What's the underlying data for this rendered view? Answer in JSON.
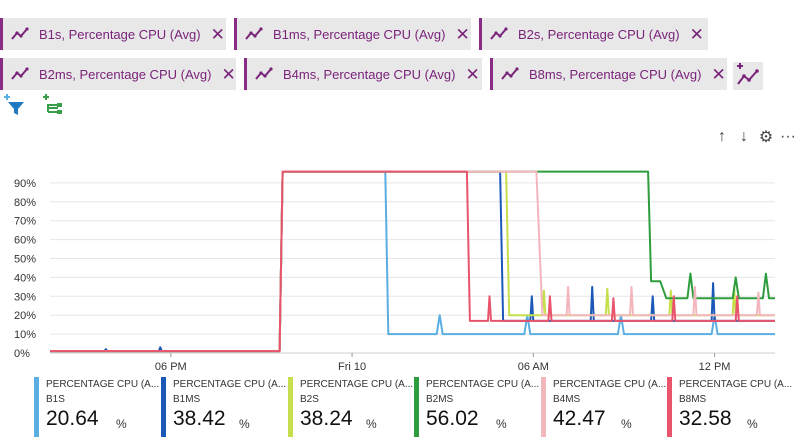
{
  "metric_chips": [
    {
      "label": "B1s, Percentage CPU (Avg)"
    },
    {
      "label": "B1ms, Percentage CPU (Avg)"
    },
    {
      "label": "B2s, Percentage CPU (Avg)"
    },
    {
      "label": "B2ms, Percentage CPU (Avg)"
    },
    {
      "label": "B4ms, Percentage CPU (Avg)"
    },
    {
      "label": "B8ms, Percentage CPU (Avg)"
    }
  ],
  "chip_close_glyph": "✕",
  "toolbar": {
    "up": "↑",
    "down": "↓",
    "gear": "⚙",
    "more": "···"
  },
  "icons": {
    "chip": "line-chart-icon",
    "add_metric": "add-metric-icon",
    "add_filter": "add-filter-icon",
    "apply_splitting": "apply-splitting-icon"
  },
  "colors": {
    "accent": "#8a2b88"
  },
  "legend": [
    {
      "metric": "PERCENTAGE CPU (A...",
      "name": "B1S",
      "value": "20.64",
      "unit": "%",
      "color": "#5aaee2"
    },
    {
      "metric": "PERCENTAGE CPU (A...",
      "name": "B1MS",
      "value": "38.42",
      "unit": "%",
      "color": "#1b58b8"
    },
    {
      "metric": "PERCENTAGE CPU (A...",
      "name": "B2S",
      "value": "38.24",
      "unit": "%",
      "color": "#c5e04c"
    },
    {
      "metric": "PERCENTAGE CPU (A...",
      "name": "B2MS",
      "value": "56.02",
      "unit": "%",
      "color": "#2e9d3e"
    },
    {
      "metric": "PERCENTAGE CPU (A...",
      "name": "B4MS",
      "value": "42.47",
      "unit": "%",
      "color": "#f4b6bd"
    },
    {
      "metric": "PERCENTAGE CPU (A...",
      "name": "B8MS",
      "value": "32.58",
      "unit": "%",
      "color": "#e8546b"
    }
  ],
  "chart_data": {
    "type": "line",
    "title": "",
    "xlabel": "",
    "ylabel": "",
    "x_unit": "hours since 14:00",
    "xlim": [
      0,
      24
    ],
    "ylim": [
      0,
      100
    ],
    "x_tick_labels": [
      {
        "x": 4,
        "label": "06 PM"
      },
      {
        "x": 10,
        "label": "Fri 10"
      },
      {
        "x": 16,
        "label": "06 AM"
      },
      {
        "x": 22,
        "label": "12 PM"
      }
    ],
    "y_ticks": [
      0,
      10,
      20,
      30,
      40,
      50,
      60,
      70,
      80,
      90
    ],
    "y_tick_labels": [
      "0%",
      "10%",
      "20%",
      "30%",
      "40%",
      "50%",
      "60%",
      "70%",
      "80%",
      "90%"
    ],
    "grid": true,
    "series": [
      {
        "name": "B1S",
        "color": "#5aaee2",
        "points": [
          [
            0,
            1
          ],
          [
            7.6,
            1
          ],
          [
            7.7,
            96
          ],
          [
            11.1,
            96
          ],
          [
            11.2,
            10
          ],
          [
            12.8,
            10
          ],
          [
            12.9,
            20
          ],
          [
            13.0,
            10
          ],
          [
            15.7,
            10
          ],
          [
            15.8,
            20
          ],
          [
            15.9,
            10
          ],
          [
            18.8,
            10
          ],
          [
            18.9,
            20
          ],
          [
            19.0,
            10
          ],
          [
            21.9,
            10
          ],
          [
            22.0,
            20
          ],
          [
            22.1,
            10
          ],
          [
            24,
            10
          ]
        ]
      },
      {
        "name": "B1MS",
        "color": "#1b58b8",
        "points": [
          [
            0,
            1
          ],
          [
            1.8,
            1
          ],
          [
            1.85,
            2
          ],
          [
            1.9,
            1
          ],
          [
            3.6,
            1
          ],
          [
            3.65,
            3
          ],
          [
            3.7,
            1
          ],
          [
            7.6,
            1
          ],
          [
            7.7,
            96
          ],
          [
            14.9,
            96
          ],
          [
            15.0,
            17
          ],
          [
            15.9,
            17
          ],
          [
            15.95,
            30
          ],
          [
            16.0,
            17
          ],
          [
            17.9,
            17
          ],
          [
            17.95,
            35
          ],
          [
            18.0,
            17
          ],
          [
            19.9,
            17
          ],
          [
            19.95,
            30
          ],
          [
            20.0,
            17
          ],
          [
            21.9,
            17
          ],
          [
            21.95,
            37
          ],
          [
            22.0,
            17
          ],
          [
            23.9,
            17
          ],
          [
            24,
            17
          ]
        ]
      },
      {
        "name": "B2S",
        "color": "#c5e04c",
        "points": [
          [
            0,
            1
          ],
          [
            7.6,
            1
          ],
          [
            7.7,
            96
          ],
          [
            15.1,
            96
          ],
          [
            15.2,
            20
          ],
          [
            16.3,
            20
          ],
          [
            16.35,
            33
          ],
          [
            16.4,
            20
          ],
          [
            18.4,
            20
          ],
          [
            18.45,
            34
          ],
          [
            18.5,
            20
          ],
          [
            20.5,
            20
          ],
          [
            20.55,
            33
          ],
          [
            20.6,
            20
          ],
          [
            22.6,
            20
          ],
          [
            22.65,
            35
          ],
          [
            22.7,
            20
          ],
          [
            24,
            20
          ]
        ]
      },
      {
        "name": "B2MS",
        "color": "#2e9d3e",
        "points": [
          [
            0,
            1
          ],
          [
            7.6,
            1
          ],
          [
            7.7,
            96
          ],
          [
            19.8,
            96
          ],
          [
            19.9,
            38
          ],
          [
            20.2,
            38
          ],
          [
            20.4,
            29
          ],
          [
            21.1,
            29
          ],
          [
            21.2,
            42
          ],
          [
            21.3,
            29
          ],
          [
            22.6,
            29
          ],
          [
            22.7,
            40
          ],
          [
            22.8,
            29
          ],
          [
            23.6,
            29
          ],
          [
            23.7,
            42
          ],
          [
            23.8,
            29
          ],
          [
            24,
            29
          ]
        ]
      },
      {
        "name": "B4MS",
        "color": "#f4b6bd",
        "points": [
          [
            0,
            1
          ],
          [
            7.6,
            1
          ],
          [
            7.7,
            96
          ],
          [
            16.1,
            96
          ],
          [
            16.3,
            20
          ],
          [
            17.1,
            20
          ],
          [
            17.15,
            35
          ],
          [
            17.2,
            20
          ],
          [
            19.2,
            20
          ],
          [
            19.25,
            35
          ],
          [
            19.3,
            20
          ],
          [
            21.3,
            20
          ],
          [
            21.35,
            35
          ],
          [
            21.4,
            20
          ],
          [
            23.4,
            20
          ],
          [
            23.45,
            32
          ],
          [
            23.5,
            20
          ],
          [
            24,
            20
          ]
        ]
      },
      {
        "name": "B8MS",
        "color": "#e8546b",
        "points": [
          [
            0,
            1
          ],
          [
            7.6,
            1
          ],
          [
            7.7,
            96
          ],
          [
            13.8,
            96
          ],
          [
            13.9,
            17
          ],
          [
            14.5,
            17
          ],
          [
            14.55,
            30
          ],
          [
            14.6,
            17
          ],
          [
            16.5,
            17
          ],
          [
            16.55,
            30
          ],
          [
            16.6,
            17
          ],
          [
            18.6,
            17
          ],
          [
            18.65,
            29
          ],
          [
            18.7,
            17
          ],
          [
            20.6,
            17
          ],
          [
            20.65,
            30
          ],
          [
            20.7,
            17
          ],
          [
            22.7,
            17
          ],
          [
            22.75,
            30
          ],
          [
            22.8,
            17
          ],
          [
            24,
            17
          ]
        ]
      }
    ]
  }
}
